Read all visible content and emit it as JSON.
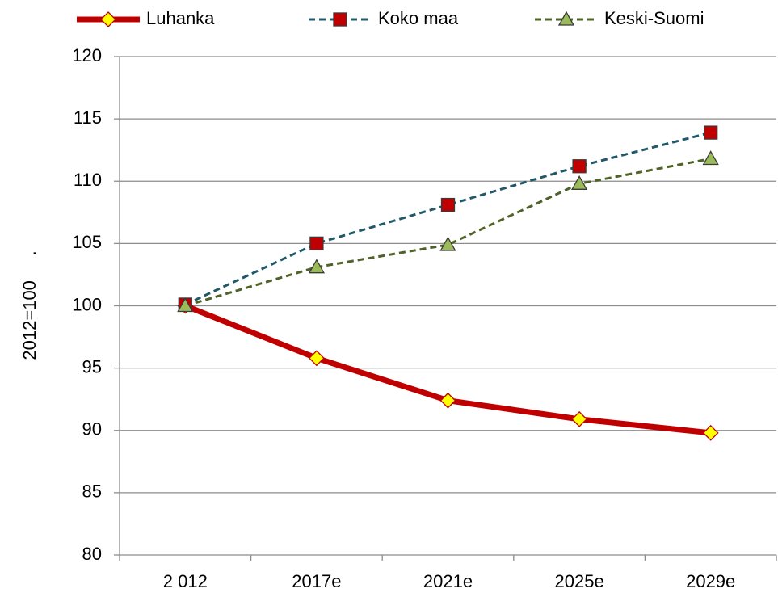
{
  "chart_data": {
    "type": "line",
    "ylabel": "2012=100     .",
    "categories": [
      "2 012",
      "2017e",
      "2021e",
      "2025e",
      "2029e"
    ],
    "series": [
      {
        "name": "Luhanka",
        "color": "#c00000",
        "marker": "diamond",
        "marker_color": "#ffff00",
        "dash": false,
        "values": [
          100,
          95.8,
          92.4,
          90.9,
          89.8
        ]
      },
      {
        "name": "Koko maa",
        "color": "#215968",
        "marker": "square",
        "marker_color": "#c00000",
        "dash": true,
        "values": [
          100.1,
          105,
          108.1,
          111.2,
          113.9
        ]
      },
      {
        "name": "Keski-Suomi",
        "color": "#4f6228",
        "marker": "triangle",
        "marker_color": "#9bbb59",
        "dash": true,
        "values": [
          100,
          103.1,
          104.9,
          109.8,
          111.8
        ]
      }
    ],
    "ylim": [
      80,
      120
    ],
    "yticks": [
      80,
      85,
      90,
      95,
      100,
      105,
      110,
      115,
      120
    ],
    "grid": true,
    "legend": "top"
  }
}
